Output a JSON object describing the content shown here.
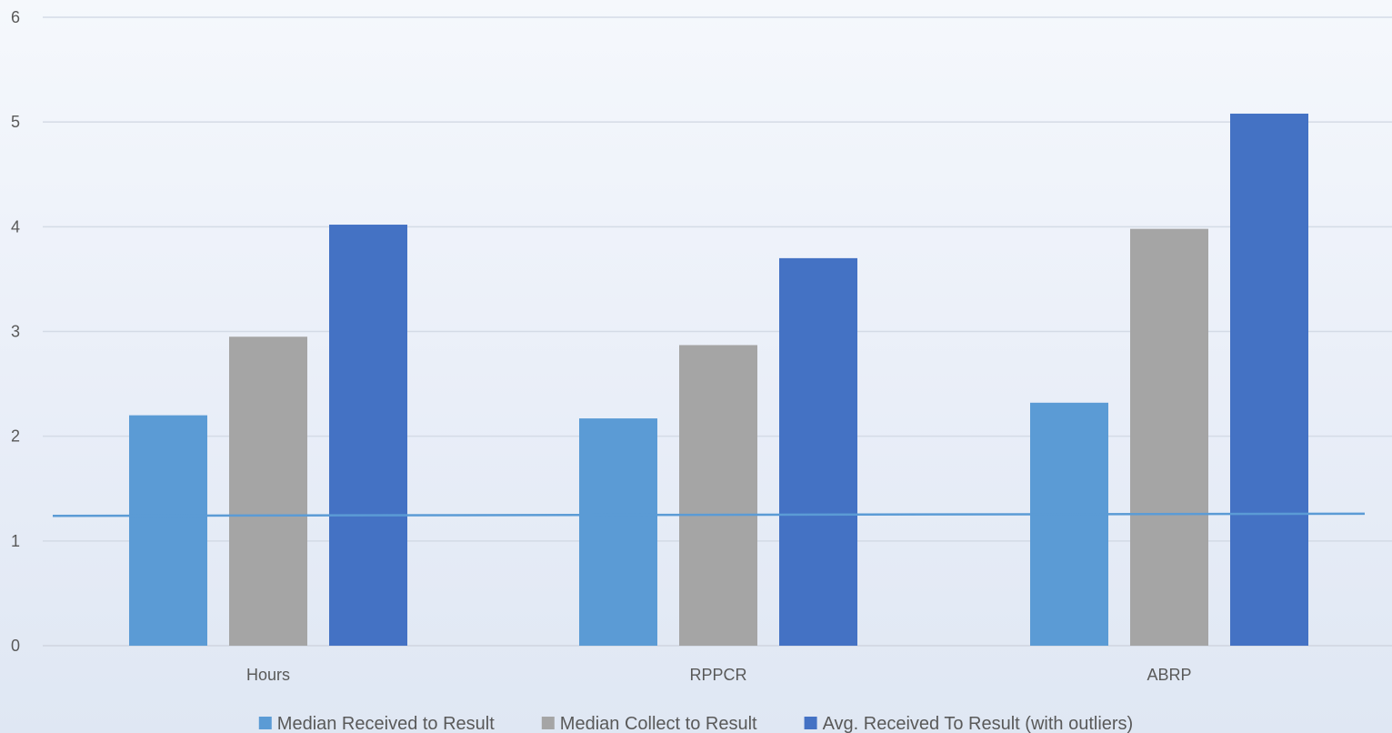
{
  "chart_data": {
    "type": "bar",
    "title": "",
    "xlabel": "",
    "ylabel": "",
    "categories": [
      "Hours",
      "RPPCR",
      "ABRP"
    ],
    "series": [
      {
        "name": "Median Received to Result",
        "color": "#5b9bd5",
        "values": [
          2.2,
          2.17,
          2.32
        ]
      },
      {
        "name": "Median Collect to Result",
        "color": "#a5a5a5",
        "values": [
          2.95,
          2.87,
          3.98
        ]
      },
      {
        "name": "Avg. Received To Result (with outliers)",
        "color": "#4472c4",
        "values": [
          4.02,
          3.7,
          5.08
        ]
      }
    ],
    "reference_line": {
      "color": "#5b9bd5",
      "values": [
        1.24,
        1.25,
        1.26
      ]
    },
    "ylim": [
      0,
      6
    ],
    "yticks": [
      0,
      1,
      2,
      3,
      4,
      5,
      6
    ],
    "grid": true,
    "legend_position": "bottom-center"
  }
}
